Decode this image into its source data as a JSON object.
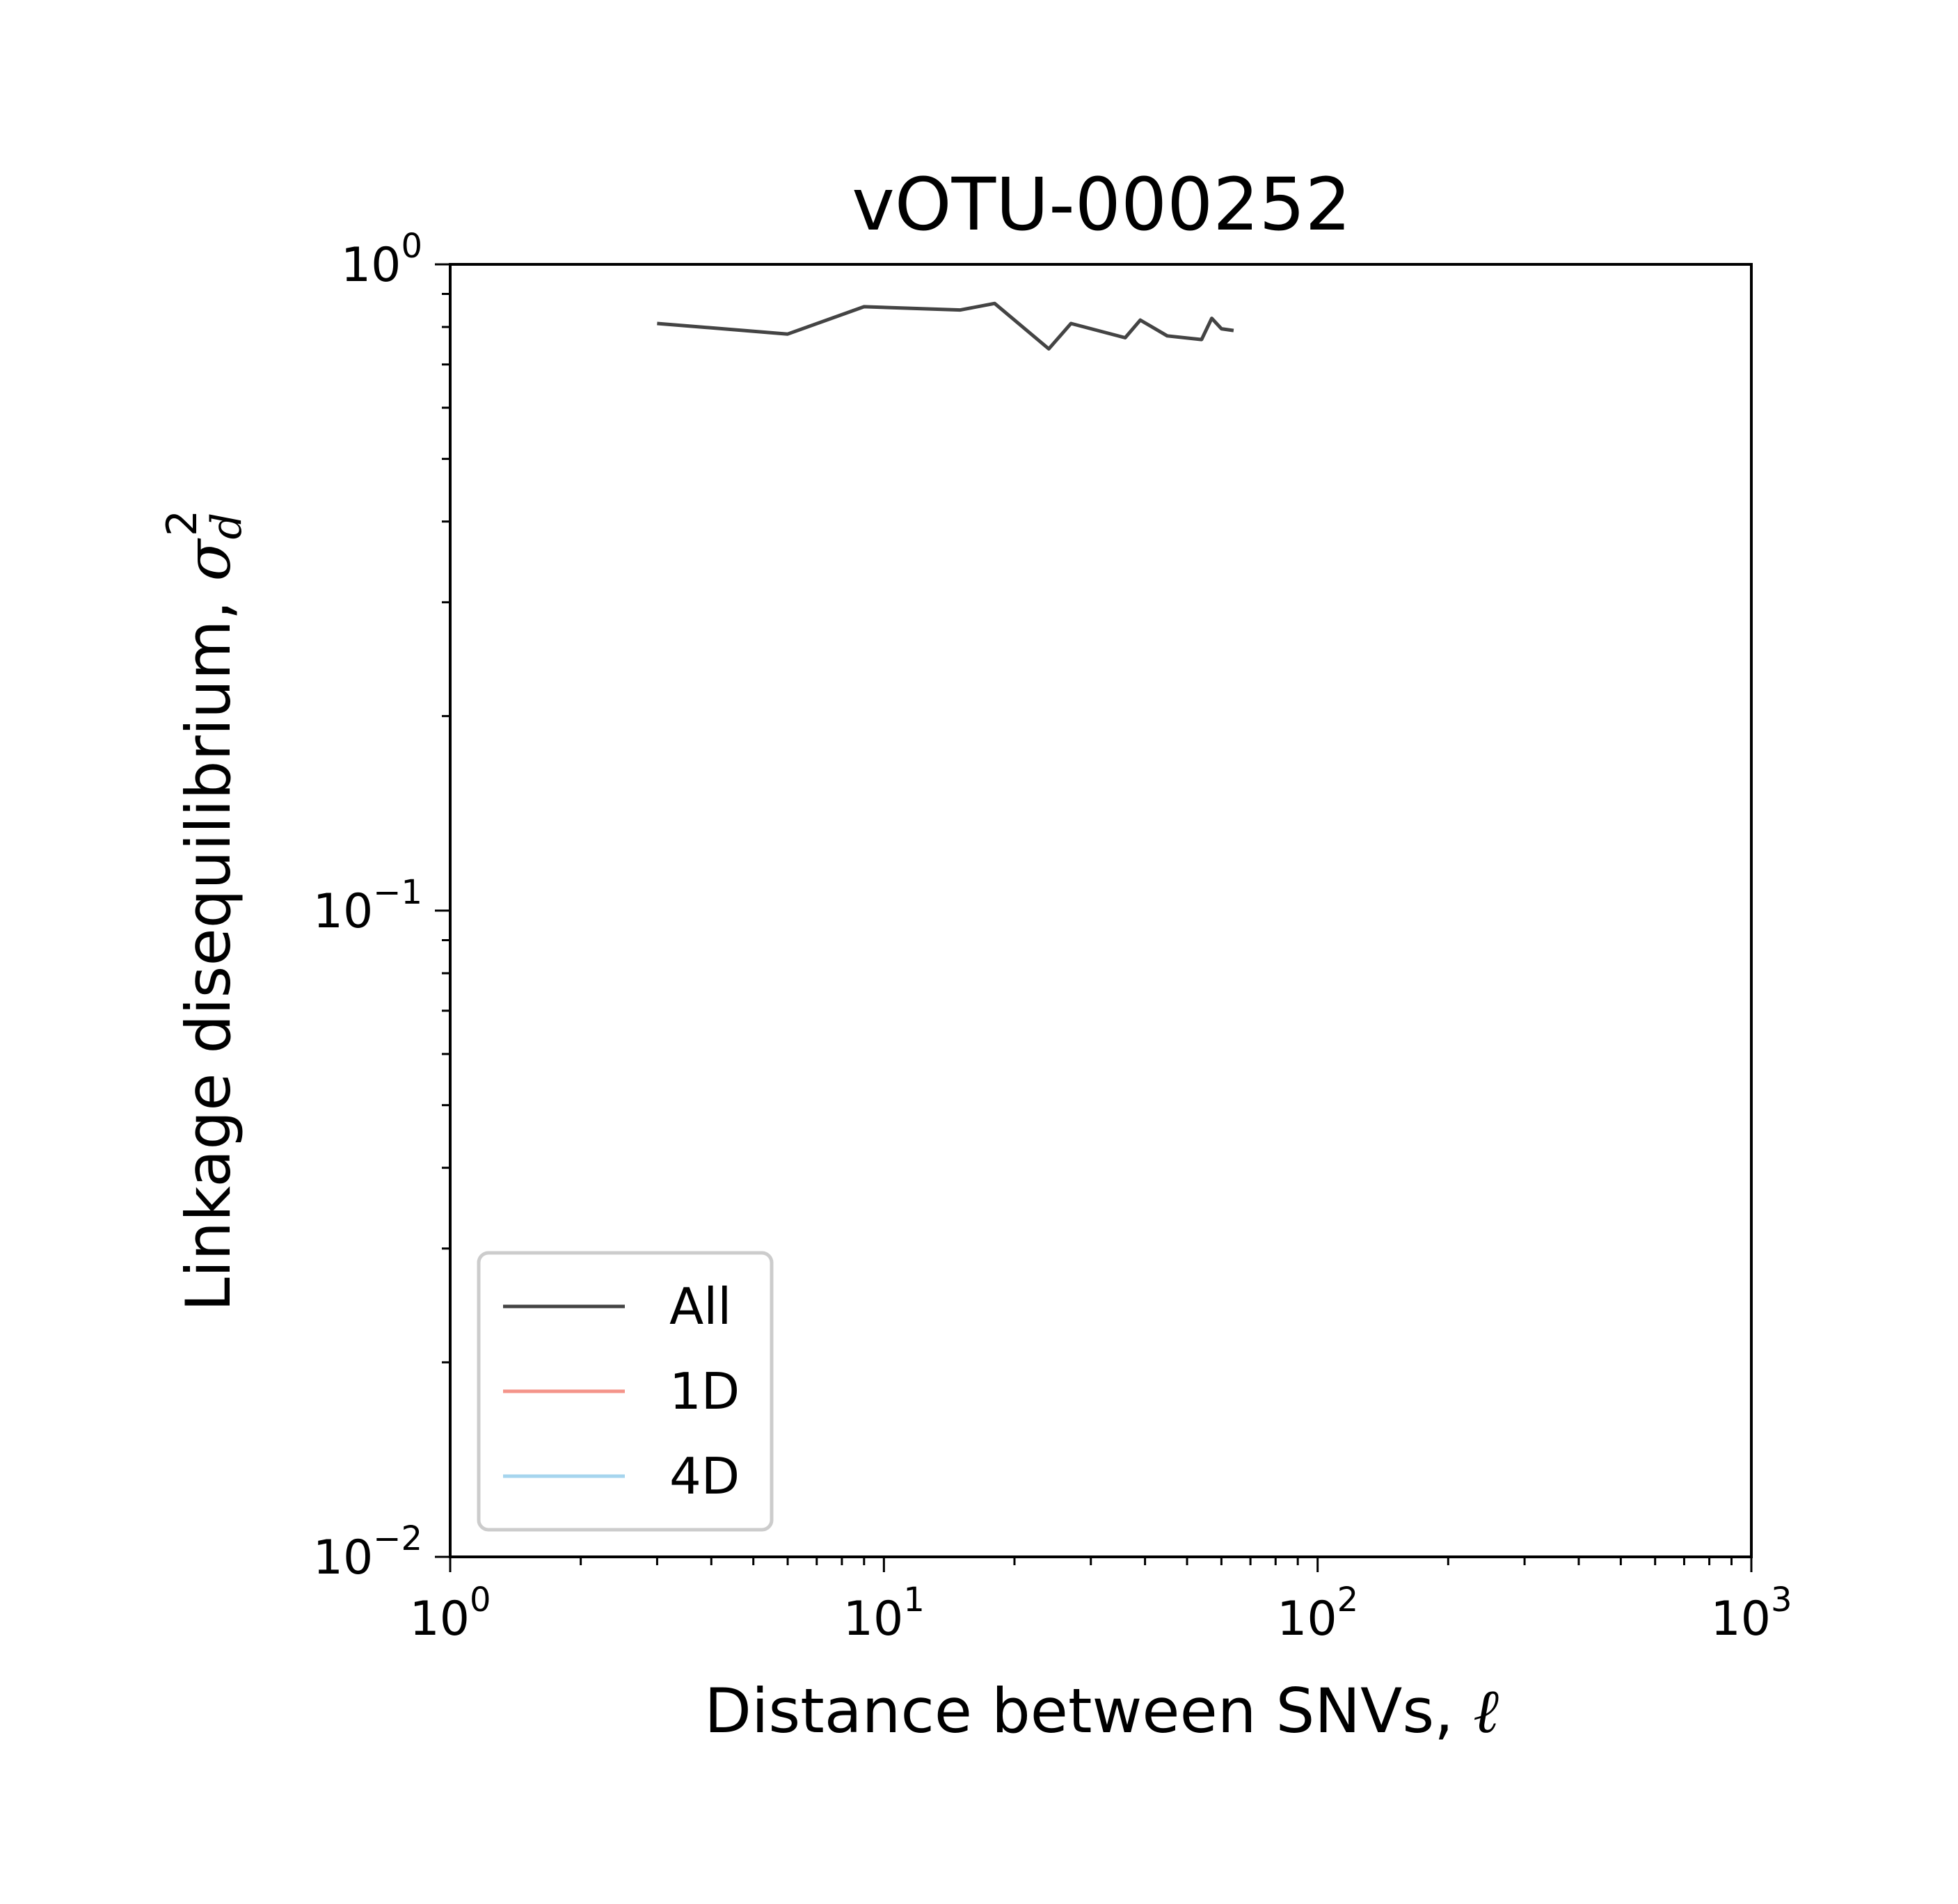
{
  "chart_data": {
    "type": "line",
    "title": "vOTU-000252",
    "xlabel": "Distance between SNVs, ",
    "xlabel_symbol": "ℓ",
    "ylabel": "Linkage disequilibrium, ",
    "ylabel_symbol": "σ",
    "ylabel_symbol_sub": "d",
    "ylabel_symbol_sup": "2",
    "xscale": "log",
    "yscale": "log",
    "xlim": [
      1,
      1000
    ],
    "ylim": [
      0.01,
      1
    ],
    "xticks": [
      {
        "value": 1,
        "base": "10",
        "exp": "0"
      },
      {
        "value": 10,
        "base": "10",
        "exp": "1"
      },
      {
        "value": 100,
        "base": "10",
        "exp": "2"
      },
      {
        "value": 1000,
        "base": "10",
        "exp": "3"
      }
    ],
    "yticks": [
      {
        "value": 1,
        "base": "10",
        "exp": "0"
      },
      {
        "value": 0.1,
        "base": "10",
        "exp": "−1"
      },
      {
        "value": 0.01,
        "base": "10",
        "exp": "−2"
      }
    ],
    "legend_position": "lower-left",
    "series": [
      {
        "name": "All",
        "color": "#444444",
        "x": [
          3,
          6,
          9,
          15,
          18,
          24,
          27,
          36,
          39,
          45,
          54,
          57,
          60,
          64
        ],
        "y": [
          0.81,
          0.78,
          0.86,
          0.85,
          0.87,
          0.74,
          0.81,
          0.77,
          0.82,
          0.775,
          0.765,
          0.825,
          0.795,
          0.79
        ]
      },
      {
        "name": "1D",
        "color": "#f4948a",
        "x": [],
        "y": []
      },
      {
        "name": "4D",
        "color": "#a6d5ee",
        "x": [],
        "y": []
      }
    ]
  }
}
